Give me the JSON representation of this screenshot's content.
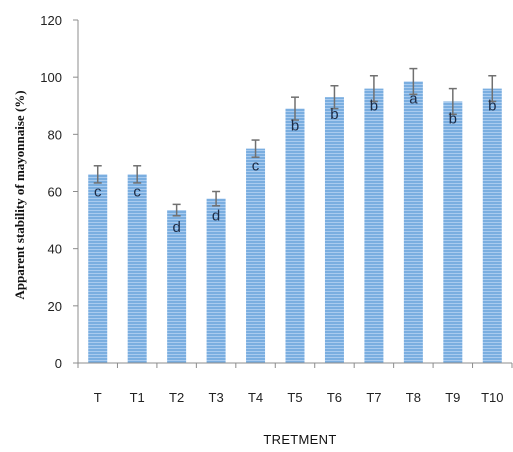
{
  "chart_data": {
    "type": "bar",
    "xlabel": "TRETMENT",
    "ylabel": "Apparent stability of mayonnaise (%)",
    "ylim": [
      0,
      120
    ],
    "yticks": [
      0,
      20,
      40,
      60,
      80,
      100,
      120
    ],
    "categories": [
      "T",
      "T1",
      "T2",
      "T3",
      "T4",
      "T5",
      "T6",
      "T7",
      "T8",
      "T9",
      "T10"
    ],
    "values": [
      66,
      66,
      53.5,
      57.5,
      75,
      89,
      93,
      96,
      98.5,
      91.5,
      96
    ],
    "errors": [
      3,
      3,
      2,
      2.5,
      3,
      4,
      4,
      4.5,
      4.5,
      4.5,
      4.5
    ],
    "letters": [
      "c",
      "c",
      "d",
      "d",
      "c",
      "b",
      "b",
      "b",
      "a",
      "b",
      "b"
    ],
    "colors": {
      "bar": "#7aaee0",
      "bar_stripe": "#a9cbef",
      "error_bar": "#707070",
      "axis": "#8c8c8c"
    },
    "grid": false,
    "legend": "none"
  }
}
